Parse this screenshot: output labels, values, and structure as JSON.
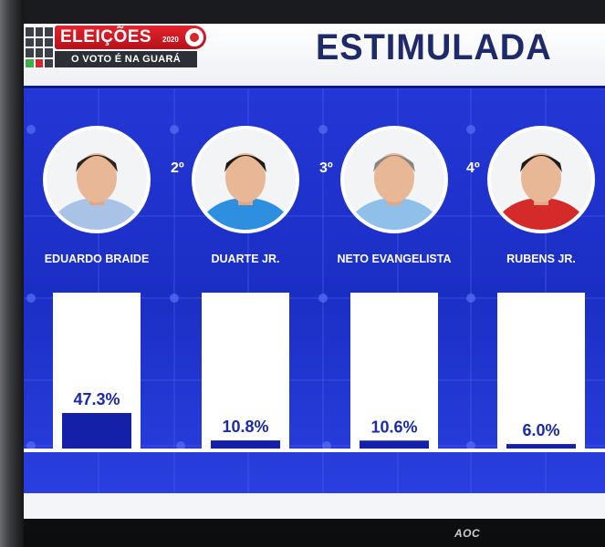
{
  "header": {
    "brand_title": "ELEIÇÕES",
    "brand_year": "2020",
    "tagline": "O VOTO É NA GUARÁ",
    "headline": "ESTIMULADA"
  },
  "monitor": {
    "brand": "AOC"
  },
  "colors": {
    "background_blue": "#1b2ec4",
    "bar_fill": "#1420a8",
    "bar_track": "#ffffff",
    "brand_red": "#e3232d",
    "headline_navy": "#1f2a6b"
  },
  "candidates": [
    {
      "rank": "",
      "name": "EDUARDO BRAIDE",
      "shirt": "#a9c3e6",
      "hair": "#2b2320"
    },
    {
      "rank": "2º",
      "name": "DUARTE JR.",
      "shirt": "#2e8fe0",
      "hair": "#1e1a18"
    },
    {
      "rank": "3º",
      "name": "NETO EVANGELISTA",
      "shirt": "#8fc0ea",
      "hair": "#8a8580"
    },
    {
      "rank": "4º",
      "name": "RUBENS JR.",
      "shirt": "#d42a2a",
      "hair": "#1e1a18"
    }
  ],
  "chart_data": {
    "type": "bar",
    "categories": [
      "EDUARDO BRAIDE",
      "DUARTE JR.",
      "NETO EVANGELISTA",
      "RUBENS JR."
    ],
    "values": [
      47.3,
      10.8,
      10.6,
      6.0
    ],
    "labels": [
      "47.3%",
      "10.8%",
      "10.6%",
      "6.0%"
    ],
    "unit": "%",
    "ylim": [
      0,
      100
    ],
    "title": "ESTIMULADA",
    "xlabel": "",
    "ylabel": "",
    "legend": "none",
    "grid": false
  }
}
